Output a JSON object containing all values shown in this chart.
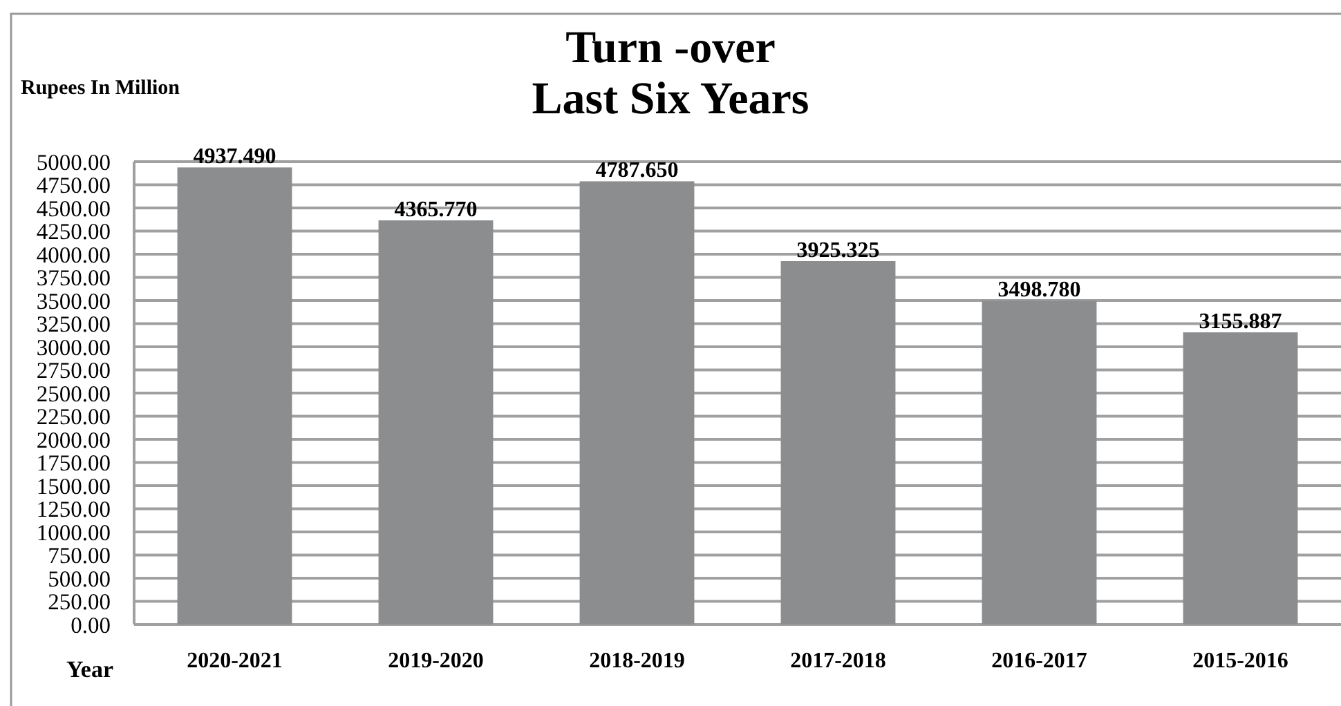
{
  "chart_data": {
    "type": "bar",
    "title": "Turn -over\nLast Six Years",
    "ylabel": "Rupees In Million",
    "xlabel": "Year",
    "categories": [
      "2020-2021",
      "2019-2020",
      "2018-2019",
      "2017-2018",
      "2016-2017",
      "2015-2016"
    ],
    "values": [
      4937.49,
      4365.77,
      4787.65,
      3925.325,
      3498.78,
      3155.887
    ],
    "value_labels": [
      "4937.490",
      "4365.770",
      "4787.650",
      "3925.325",
      "3498.780",
      "3155.887"
    ],
    "color": "#8c8d8f",
    "ylim": [
      0,
      5000
    ],
    "yticks": [
      {
        "value": 0,
        "label": "0.00"
      },
      {
        "value": 250,
        "label": "250.00"
      },
      {
        "value": 500,
        "label": "500.00"
      },
      {
        "value": 750,
        "label": "750.00"
      },
      {
        "value": 1000,
        "label": "1000.00"
      },
      {
        "value": 1250,
        "label": "1250.00"
      },
      {
        "value": 1500,
        "label": "1500.00"
      },
      {
        "value": 1750,
        "label": "1750.00"
      },
      {
        "value": 2000,
        "label": "2000.00"
      },
      {
        "value": 2250,
        "label": "2250.00"
      },
      {
        "value": 2500,
        "label": "2500.00"
      },
      {
        "value": 2750,
        "label": "2750.00"
      },
      {
        "value": 3000,
        "label": "3000.00"
      },
      {
        "value": 3250,
        "label": "3250.00"
      },
      {
        "value": 3500,
        "label": "3500.00"
      },
      {
        "value": 3750,
        "label": "3750.00"
      },
      {
        "value": 4000,
        "label": "4000.00"
      },
      {
        "value": 4250,
        "label": "4250.00"
      },
      {
        "value": 4500,
        "label": "4500.00"
      },
      {
        "value": 4750,
        "label": "4750.00"
      },
      {
        "value": 5000,
        "label": "5000.00"
      }
    ],
    "grid": "y"
  }
}
